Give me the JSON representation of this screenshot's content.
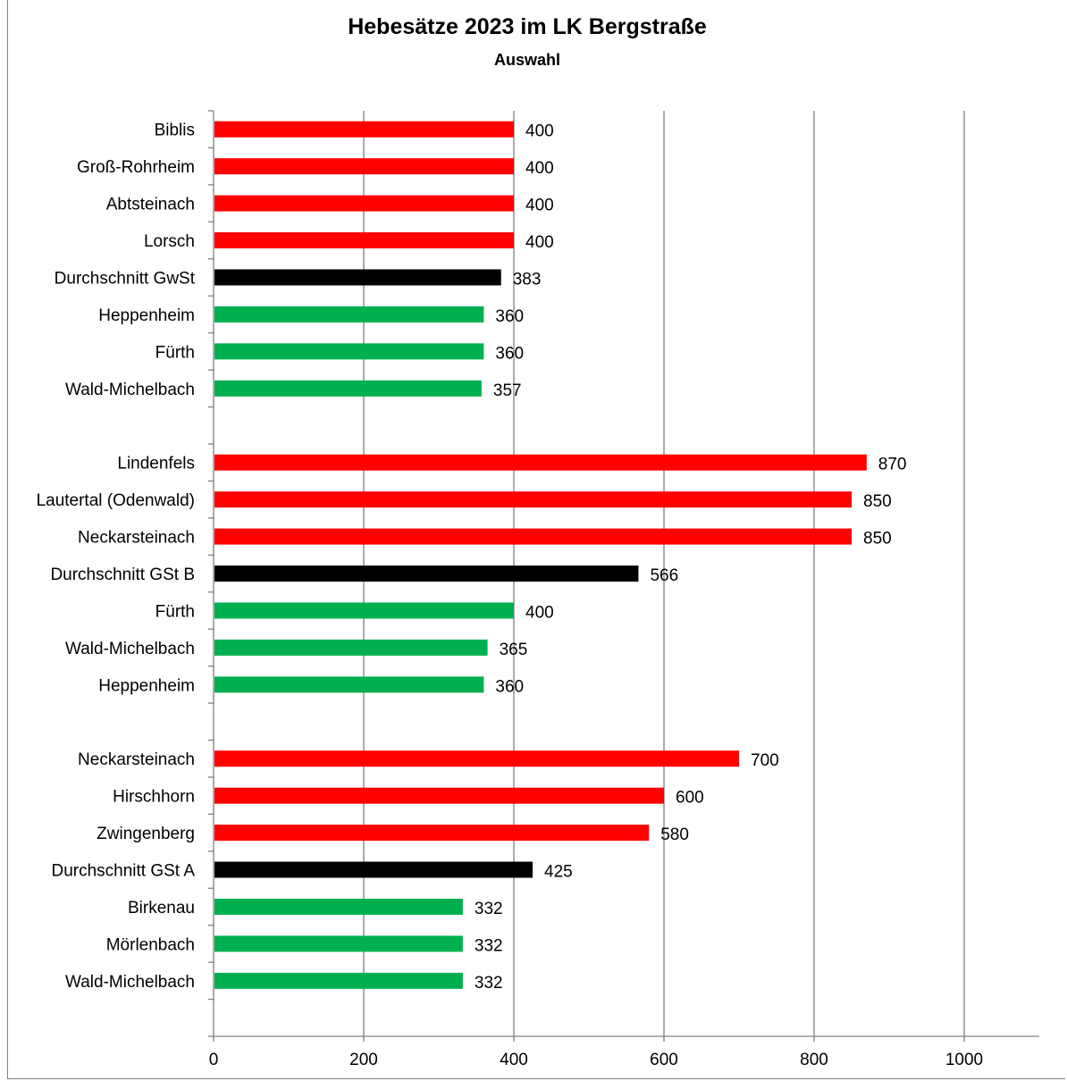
{
  "chart_data": {
    "type": "bar",
    "orientation": "horizontal",
    "title": "Hebesätze 2023 im LK Bergstraße",
    "subtitle": "Auswahl",
    "xlabel": "",
    "ylabel": "",
    "xlim": [
      0,
      1100
    ],
    "x_ticks": [
      0,
      200,
      400,
      600,
      800,
      1000
    ],
    "grid": "vertical",
    "colors": {
      "high": "#ff0000",
      "average": "#000000",
      "low": "#00b050"
    },
    "categories": [
      "Biblis",
      "Groß-Rohrheim",
      "Abtsteinach",
      "Lorsch",
      "Durchschnitt GwSt",
      "Heppenheim",
      "Fürth",
      "Wald-Michelbach",
      "",
      "Lindenfels",
      "Lautertal (Odenwald)",
      "Neckarsteinach",
      "Durchschnitt GSt B",
      "Fürth",
      "Wald-Michelbach",
      "Heppenheim",
      "",
      "Neckarsteinach",
      "Hirschhorn",
      "Zwingenberg",
      "Durchschnitt GSt A",
      "Birkenau",
      "Mörlenbach",
      "Wald-Michelbach",
      ""
    ],
    "values": [
      400,
      400,
      400,
      400,
      383,
      360,
      360,
      357,
      null,
      870,
      850,
      850,
      566,
      400,
      365,
      360,
      null,
      700,
      600,
      580,
      425,
      332,
      332,
      332,
      null
    ],
    "bar_types": [
      "high",
      "high",
      "high",
      "high",
      "average",
      "low",
      "low",
      "low",
      "gap",
      "high",
      "high",
      "high",
      "average",
      "low",
      "low",
      "low",
      "gap",
      "high",
      "high",
      "high",
      "average",
      "low",
      "low",
      "low",
      "gap"
    ]
  }
}
